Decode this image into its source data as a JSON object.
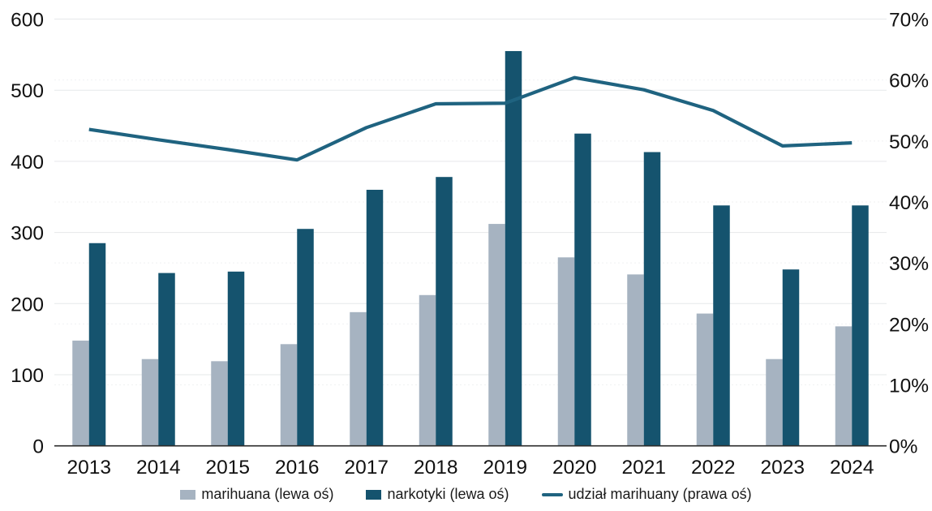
{
  "chart_data": {
    "type": "combo",
    "title": "",
    "categories": [
      "2013",
      "2014",
      "2015",
      "2016",
      "2017",
      "2018",
      "2019",
      "2020",
      "2021",
      "2022",
      "2023",
      "2024"
    ],
    "series": [
      {
        "name": "marihuana (lewa oś)",
        "type": "bar",
        "axis": "left",
        "color": "#a6b3c1",
        "values": [
          148,
          122,
          119,
          143,
          188,
          212,
          312,
          265,
          241,
          186,
          122,
          168
        ]
      },
      {
        "name": "narkotyki (lewa oś)",
        "type": "bar",
        "axis": "left",
        "color": "#15536e",
        "values": [
          285,
          243,
          245,
          305,
          360,
          378,
          555,
          439,
          413,
          338,
          248,
          338
        ]
      },
      {
        "name": "udział marihuany (prawa oś)",
        "type": "line",
        "axis": "right",
        "color": "#1f6380",
        "values": [
          51.9,
          50.2,
          48.6,
          46.9,
          52.2,
          56.1,
          56.2,
          60.4,
          58.4,
          55.0,
          49.2,
          49.7
        ]
      }
    ],
    "left_axis": {
      "min": 0,
      "max": 600,
      "tick_values": [
        0,
        100,
        200,
        300,
        400,
        500,
        600
      ],
      "tick_labels": [
        "0",
        "100",
        "200",
        "300",
        "400",
        "500",
        "600"
      ]
    },
    "right_axis": {
      "min": 0,
      "max": 70,
      "tick_values": [
        0,
        10,
        20,
        30,
        40,
        50,
        60,
        70
      ],
      "tick_labels": [
        "0%",
        "10%",
        "20%",
        "30%",
        "40%",
        "50%",
        "60%",
        "70%"
      ]
    },
    "grid": true,
    "grid_color": "#e6e8ea",
    "grid_dotted_color": "#f0f1f2",
    "axis_color": "#2b2b2b",
    "legend_position": "bottom"
  }
}
